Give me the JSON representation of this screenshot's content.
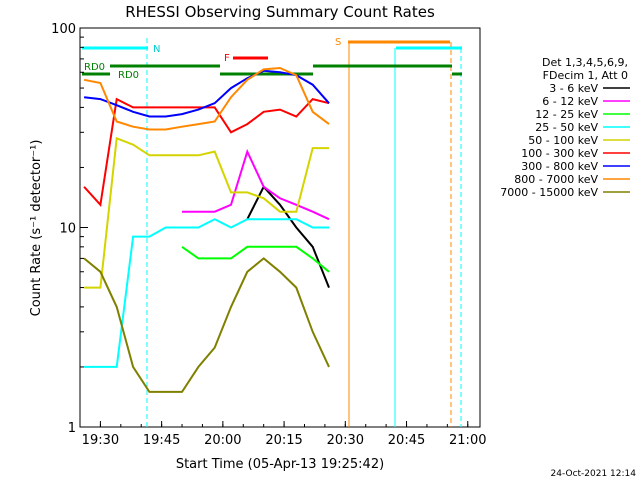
{
  "chart_data": {
    "type": "line",
    "title": "RHESSI Observing Summary Count Rates",
    "xlabel": "Start Time (05-Apr-13 19:25:42)",
    "ylabel": "Count Rate (s⁻¹ detector⁻¹)",
    "yscale": "log",
    "ylim": [
      1,
      100
    ],
    "xlim": [
      "19:25",
      "21:03"
    ],
    "x_ticks": [
      "19:30",
      "19:45",
      "20:00",
      "20:15",
      "20:30",
      "20:45",
      "21:00"
    ],
    "y_ticks": [
      "1",
      "10",
      "100"
    ],
    "legend_header": [
      "Det 1,3,4,5,6,9,",
      "FDecim 1, Att 0"
    ],
    "legend_position": "right",
    "grid": false,
    "x": [
      "19:26",
      "19:30",
      "19:34",
      "19:38",
      "19:42",
      "19:46",
      "19:50",
      "19:54",
      "19:58",
      "20:02",
      "20:06",
      "20:10",
      "20:14",
      "20:18",
      "20:22",
      "20:26",
      "20:30"
    ],
    "series": [
      {
        "name": "3 - 6 keV",
        "color": "#000000",
        "values": [
          null,
          null,
          null,
          null,
          null,
          null,
          null,
          null,
          null,
          null,
          11,
          16,
          13,
          10,
          8,
          5,
          null
        ]
      },
      {
        "name": "6 - 12 keV",
        "color": "#ff00ff",
        "values": [
          null,
          null,
          null,
          null,
          null,
          null,
          12,
          12,
          12,
          13,
          24,
          16,
          14,
          13,
          12,
          11,
          null
        ]
      },
      {
        "name": "12 - 25 keV",
        "color": "#00ff00",
        "values": [
          null,
          null,
          null,
          null,
          null,
          null,
          8,
          7,
          7,
          7,
          8,
          8,
          8,
          8,
          7,
          6,
          null
        ]
      },
      {
        "name": "25 - 50 keV",
        "color": "#00ffff",
        "values": [
          2,
          2,
          2,
          9,
          9,
          10,
          10,
          10,
          11,
          10,
          11,
          11,
          11,
          11,
          10,
          10,
          null
        ]
      },
      {
        "name": "50 - 100 keV",
        "color": "#d4d400",
        "values": [
          5,
          5,
          28,
          26,
          23,
          23,
          23,
          23,
          24,
          15,
          15,
          14,
          12,
          12,
          25,
          25,
          null
        ]
      },
      {
        "name": "100 - 300 keV",
        "color": "#ff0000",
        "values": [
          16,
          13,
          44,
          40,
          40,
          40,
          40,
          40,
          40,
          30,
          33,
          38,
          39,
          36,
          44,
          42,
          null
        ]
      },
      {
        "name": "300 - 800 keV",
        "color": "#0000ff",
        "values": [
          45,
          44,
          41,
          38,
          36,
          36,
          37,
          39,
          42,
          50,
          56,
          61,
          60,
          58,
          52,
          42,
          null
        ]
      },
      {
        "name": "800 - 7000 keV",
        "color": "#ff8800",
        "values": [
          55,
          53,
          34,
          32,
          31,
          31,
          32,
          33,
          34,
          45,
          55,
          62,
          63,
          58,
          38,
          33,
          null
        ]
      },
      {
        "name": "7000 - 15000 keV",
        "color": "#808000",
        "values": [
          7,
          6,
          4,
          2,
          1.5,
          1.5,
          1.5,
          2,
          2.5,
          4,
          6,
          7,
          6,
          5,
          3,
          2,
          null
        ]
      }
    ],
    "flag_annotations": [
      "RD0",
      "RD0",
      "N",
      "F",
      "S"
    ],
    "timestamp": "24-Oct-2021 12:14"
  }
}
